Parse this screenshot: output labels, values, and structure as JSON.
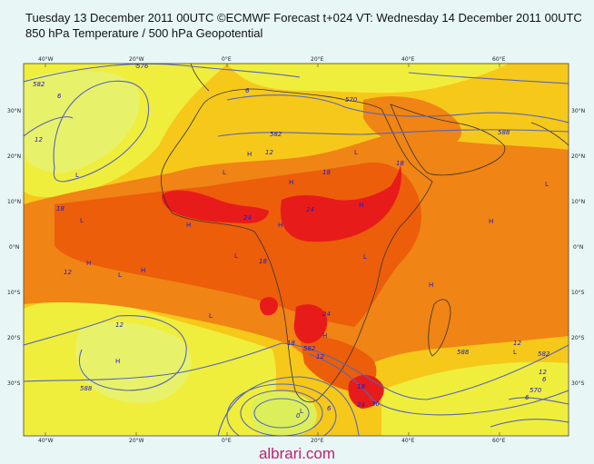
{
  "header": {
    "line1": "Tuesday 13 December 2011 00UTC ©ECMWF Forecast t+024 VT: Wednesday 14 December 2011 00UTC",
    "line2": "850 hPa Temperature / 500 hPa Geopotential"
  },
  "map": {
    "top_labels": [
      "40°W",
      "20°W",
      "0°E",
      "20°E",
      "40°E",
      "60°E"
    ],
    "bottom_labels": [
      "40°W",
      "20°W",
      "0°E",
      "20°E",
      "40°E",
      "60°E"
    ],
    "left_labels": [
      "30°N",
      "20°N",
      "10°N",
      "0°N",
      "10°S",
      "20°S",
      "30°S"
    ],
    "right_labels": [
      "30°N",
      "20°N",
      "10°N",
      "0°N",
      "10°S",
      "20°S",
      "30°S"
    ],
    "contour_labels": [
      "576",
      "582",
      "6",
      "570",
      "6",
      "582",
      "12",
      "12",
      "588",
      "18",
      "18",
      "24",
      "24",
      "18",
      "18",
      "24",
      "12",
      "12",
      "18",
      "582",
      "588",
      "12",
      "18",
      "24",
      "30",
      "12",
      "582",
      "570",
      "588",
      "12",
      "6",
      "6",
      "0",
      "6"
    ],
    "pressure_marks": [
      "L",
      "L",
      "L",
      "L",
      "L",
      "L",
      "L",
      "L",
      "H",
      "H",
      "H",
      "H",
      "H",
      "H",
      "H",
      "H",
      "H",
      "H",
      "L",
      "L",
      "L",
      "H"
    ],
    "colors": {
      "frame_bg": "#e8f6f6",
      "lt0": "#dcef5a",
      "t0_6": "#e8f16a",
      "t6_12": "#f0ee3c",
      "t12_18": "#f6c81a",
      "t18_24": "#f08414",
      "t24_30": "#ec5e0a",
      "t30plus": "#e81b1b",
      "contour": "#5566bb",
      "coast": "#333333"
    }
  },
  "footer": {
    "watermark": "albrari.com"
  }
}
